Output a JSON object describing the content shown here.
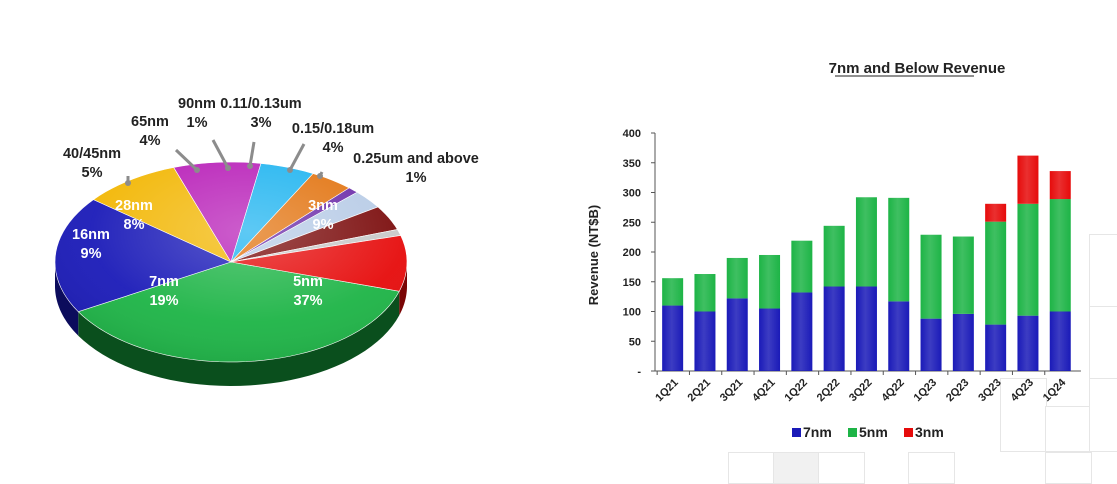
{
  "chart_data": [
    {
      "type": "pie",
      "slices": [
        {
          "label": "5nm",
          "pct_label": "37%",
          "value": 37,
          "color": "#1db446",
          "side_color": "#0a4f1d"
        },
        {
          "label": "7nm",
          "pct_label": "19%",
          "value": 19,
          "color": "#1a1ab8",
          "side_color": "#0c0c5c"
        },
        {
          "label": "16nm",
          "pct_label": "9%",
          "value": 9,
          "color": "#f2b705",
          "side_color": "#8a6605"
        },
        {
          "label": "28nm",
          "pct_label": "8%",
          "value": 8,
          "color": "#b81fb8",
          "side_color": "#5e0f5e"
        },
        {
          "label": "40/45nm",
          "pct_label": "5%",
          "value": 5,
          "color": "#1fb4f0",
          "side_color": "#0e5e80"
        },
        {
          "label": "65nm",
          "pct_label": "4%",
          "value": 4,
          "color": "#e2730f",
          "side_color": "#7a3a06"
        },
        {
          "label": "90nm",
          "pct_label": "1%",
          "value": 1,
          "color": "#6a2aa8",
          "side_color": "#36145a"
        },
        {
          "label": "0.11/0.13um",
          "pct_label": "3%",
          "value": 3,
          "color": "#b7cbe6",
          "side_color": "#5c6a80"
        },
        {
          "label": "0.15/0.18um",
          "pct_label": "4%",
          "value": 4,
          "color": "#7a0a0a",
          "side_color": "#3c0404"
        },
        {
          "label": "0.25um and above",
          "pct_label": "1%",
          "value": 1,
          "color": "#c8c8c8",
          "side_color": "#6a6a6a"
        },
        {
          "label": "3nm",
          "pct_label": "9%",
          "value": 9,
          "color": "#e60b0b",
          "side_color": "#7a0505"
        }
      ]
    },
    {
      "type": "bar",
      "stacked": true,
      "title": "7nm and Below Revenue",
      "ylabel": "Revenue (NT$B)",
      "ylim": [
        0,
        400
      ],
      "yticks": [
        "-",
        "50",
        "100",
        "150",
        "200",
        "250",
        "300",
        "350",
        "400"
      ],
      "categories": [
        "1Q21",
        "2Q21",
        "3Q21",
        "4Q21",
        "1Q22",
        "2Q22",
        "3Q22",
        "4Q22",
        "1Q23",
        "2Q23",
        "3Q23",
        "4Q23",
        "1Q24"
      ],
      "series": [
        {
          "name": "7nm",
          "color": "#1a1ab8",
          "values": [
            110,
            100,
            122,
            105,
            132,
            142,
            142,
            117,
            88,
            96,
            78,
            93,
            100
          ]
        },
        {
          "name": "5nm",
          "color": "#1db446",
          "values": [
            46,
            63,
            68,
            90,
            87,
            102,
            150,
            174,
            141,
            130,
            173,
            188,
            189
          ]
        },
        {
          "name": "3nm",
          "color": "#e60b0b",
          "values": [
            0,
            0,
            0,
            0,
            0,
            0,
            0,
            0,
            0,
            0,
            30,
            81,
            47
          ]
        }
      ],
      "legend": "bottom"
    }
  ]
}
